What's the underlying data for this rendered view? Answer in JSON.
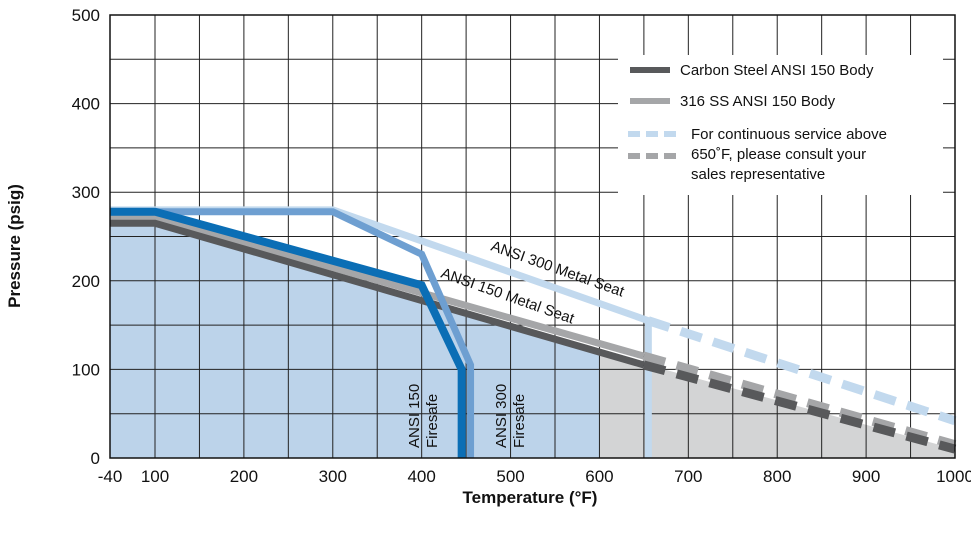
{
  "chart_data": {
    "type": "line",
    "xlabel": "Temperature (°F)",
    "ylabel": "Pressure (psig)",
    "xlim": [
      -40,
      1000
    ],
    "ylim": [
      0,
      500
    ],
    "x_ticks": [
      -40,
      100,
      200,
      300,
      400,
      500,
      600,
      700,
      800,
      900,
      1000
    ],
    "x_tick_labels": [
      "-40",
      "100",
      "200",
      "300",
      "400",
      "500",
      "600",
      "700",
      "800",
      "900",
      "1000"
    ],
    "y_ticks": [
      0,
      100,
      200,
      300,
      400,
      500
    ],
    "y_tick_labels": [
      "0",
      "100",
      "200",
      "300",
      "400",
      "500"
    ],
    "grid": true,
    "legend_position": "top-right",
    "colors": {
      "carbon_steel": "#58595b",
      "ss316": "#a5a6a8",
      "ansi300_metal": "#c2d9ee",
      "ansi300_firesafe": "#6e9fd1",
      "ansi150_firesafe": "#0b6eb5",
      "blue_fill": "#bcd3ea",
      "gray_fill": "#d3d4d5"
    },
    "series": [
      {
        "name": "Carbon Steel ANSI 150 Body",
        "key": "carbon_steel",
        "style": "solid",
        "points": [
          [
            -40,
            265
          ],
          [
            100,
            265
          ],
          [
            650,
            105
          ]
        ]
      },
      {
        "name": "316 SS ANSI 150 Body",
        "key": "ss316",
        "style": "solid",
        "points": [
          [
            -40,
            272
          ],
          [
            100,
            272
          ],
          [
            650,
            115
          ]
        ]
      },
      {
        "name": "",
        "key": "carbon_steel",
        "style": "dashed",
        "legend_ref": "dashed_gray",
        "points": [
          [
            650,
            105
          ],
          [
            1000,
            10
          ]
        ]
      },
      {
        "name": "",
        "key": "ss316",
        "style": "dashed",
        "legend_ref": "dashed_gray",
        "points": [
          [
            650,
            115
          ],
          [
            1000,
            15
          ]
        ]
      },
      {
        "name": "ANSI 300 Metal Seat",
        "key": "ansi300_metal",
        "style": "solid",
        "points": [
          [
            -40,
            280
          ],
          [
            300,
            280
          ],
          [
            400,
            245
          ],
          [
            655,
            155
          ],
          [
            655,
            0
          ]
        ]
      },
      {
        "name": "",
        "key": "ansi300_metal",
        "style": "dashed",
        "legend_ref": "dashed_blue",
        "points": [
          [
            655,
            155
          ],
          [
            1000,
            42
          ]
        ]
      },
      {
        "name": "ANSI 300 Firesafe",
        "key": "ansi300_firesafe",
        "style": "solid",
        "points": [
          [
            -40,
            278
          ],
          [
            300,
            278
          ],
          [
            400,
            230
          ],
          [
            455,
            105
          ],
          [
            455,
            0
          ]
        ]
      },
      {
        "name": "ANSI 150 Firesafe",
        "key": "ansi150_firesafe",
        "style": "solid",
        "points": [
          [
            -40,
            278
          ],
          [
            100,
            278
          ],
          [
            400,
            195
          ],
          [
            445,
            100
          ],
          [
            445,
            0
          ]
        ]
      }
    ],
    "regions": [
      {
        "key": "blue_fill",
        "points": [
          [
            -40,
            0
          ],
          [
            -40,
            265
          ],
          [
            100,
            265
          ],
          [
            600,
            120
          ],
          [
            600,
            0
          ]
        ]
      },
      {
        "key": "gray_fill",
        "points": [
          [
            600,
            0
          ],
          [
            600,
            120
          ],
          [
            1000,
            10
          ],
          [
            1000,
            0
          ]
        ]
      }
    ],
    "legend": {
      "carbon_steel": "Carbon Steel ANSI 150 Body",
      "ss316": "316 SS ANSI 150 Body",
      "dashed_line1": "For continuous service above",
      "dashed_line2": "650˚F, please consult your",
      "dashed_line3": "sales representative"
    },
    "annotations": {
      "ansi300_metal_seat": "ANSI 300 Metal Seat",
      "ansi150_metal_seat": "ANSI 150 Metal Seat",
      "ansi150_firesafe_l1": "ANSI 150",
      "ansi150_firesafe_l2": "Firesafe",
      "ansi300_firesafe_l1": "ANSI 300",
      "ansi300_firesafe_l2": "Firesafe"
    }
  }
}
